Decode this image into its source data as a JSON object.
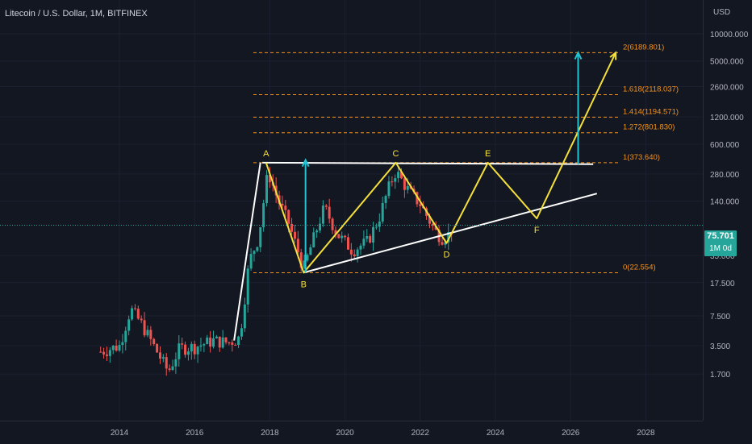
{
  "header": {
    "title": "Litecoin / U.S. Dollar, 1M, BITFINEX",
    "currency": "USD"
  },
  "last_price": {
    "value": "75.701",
    "interval": "1M 0d",
    "color": "#26a69a"
  },
  "colors": {
    "background": "#131722",
    "up": "#26a69a",
    "down": "#ef5350",
    "fib": "#f7931a",
    "wave": "#f5e03b",
    "trendline": "#ffffff",
    "arrow": "#22c4d4"
  },
  "chart_data": {
    "type": "candlestick",
    "title": "Litecoin / U.S. Dollar, 1M, BITFINEX",
    "y_scale": "log",
    "y_ticks": [
      {
        "value": 10000,
        "label": "10000.000"
      },
      {
        "value": 5000,
        "label": "5000.000"
      },
      {
        "value": 2600,
        "label": "2600.000"
      },
      {
        "value": 1200,
        "label": "1200.000"
      },
      {
        "value": 600,
        "label": "600.000"
      },
      {
        "value": 280,
        "label": "280.000"
      },
      {
        "value": 140,
        "label": "140.000"
      },
      {
        "value": 35,
        "label": "35.000"
      },
      {
        "value": 17.5,
        "label": "17.500"
      },
      {
        "value": 7.5,
        "label": "7.500"
      },
      {
        "value": 3.5,
        "label": "3.500"
      },
      {
        "value": 1.7,
        "label": "1.700"
      }
    ],
    "x_ticks": [
      {
        "year": 2014,
        "label": "2014"
      },
      {
        "year": 2016,
        "label": "2016"
      },
      {
        "year": 2018,
        "label": "2018"
      },
      {
        "year": 2020,
        "label": "2020"
      },
      {
        "year": 2022,
        "label": "2022"
      },
      {
        "year": 2024,
        "label": "2024"
      },
      {
        "year": 2026,
        "label": "2026"
      },
      {
        "year": 2028,
        "label": "2028"
      }
    ],
    "anchors": [
      {
        "year": 2013.5,
        "price": 3.0
      },
      {
        "year": 2014.0,
        "price": 3.5
      },
      {
        "year": 2014.3,
        "price": 9.0
      },
      {
        "year": 2014.6,
        "price": 6.0
      },
      {
        "year": 2015.0,
        "price": 3.0
      },
      {
        "year": 2015.3,
        "price": 1.8
      },
      {
        "year": 2015.6,
        "price": 3.3
      },
      {
        "year": 2016.0,
        "price": 3.4
      },
      {
        "year": 2016.5,
        "price": 4.0
      },
      {
        "year": 2016.9,
        "price": 3.8
      },
      {
        "year": 2017.2,
        "price": 4.3
      },
      {
        "year": 2017.45,
        "price": 30
      },
      {
        "year": 2017.7,
        "price": 55
      },
      {
        "year": 2017.95,
        "price": 300
      },
      {
        "year": 2018.2,
        "price": 150
      },
      {
        "year": 2018.5,
        "price": 80
      },
      {
        "year": 2018.9,
        "price": 25
      },
      {
        "year": 2019.2,
        "price": 60
      },
      {
        "year": 2019.45,
        "price": 120
      },
      {
        "year": 2019.8,
        "price": 60
      },
      {
        "year": 2020.2,
        "price": 40
      },
      {
        "year": 2020.6,
        "price": 50
      },
      {
        "year": 2020.9,
        "price": 90
      },
      {
        "year": 2021.2,
        "price": 220
      },
      {
        "year": 2021.35,
        "price": 300
      },
      {
        "year": 2021.7,
        "price": 180
      },
      {
        "year": 2022.0,
        "price": 130
      },
      {
        "year": 2022.4,
        "price": 65
      },
      {
        "year": 2022.6,
        "price": 55
      },
      {
        "year": 2022.75,
        "price": 60
      },
      {
        "year": 2022.9,
        "price": 75
      }
    ],
    "fib_levels": [
      {
        "ratio": "2",
        "price": 6189.801,
        "label": "2(6189.801)"
      },
      {
        "ratio": "1.618",
        "price": 2118.037,
        "label": "1.618(2118.037)"
      },
      {
        "ratio": "1.414",
        "price": 1194.571,
        "label": "1.414(1194.571)"
      },
      {
        "ratio": "1.272",
        "price": 801.83,
        "label": "1.272(801.830)"
      },
      {
        "ratio": "1",
        "price": 373.64,
        "label": "1(373.640)"
      },
      {
        "ratio": "0",
        "price": 22.554,
        "label": "0(22.554)"
      }
    ],
    "wave_points": [
      {
        "label": "A",
        "year": 2017.9,
        "price": 373.6
      },
      {
        "label": "B",
        "year": 2018.9,
        "price": 22.6
      },
      {
        "label": "C",
        "year": 2021.35,
        "price": 373.6
      },
      {
        "label": "D",
        "year": 2022.7,
        "price": 48
      },
      {
        "label": "E",
        "year": 2023.8,
        "price": 373.6
      },
      {
        "label": "F",
        "year": 2025.1,
        "price": 90
      },
      {
        "label": "",
        "year": 2027.2,
        "price": 6189.8
      }
    ],
    "trendline_top": [
      {
        "year": 2017.8,
        "price": 373.6
      },
      {
        "year": 2026.6,
        "price": 360
      }
    ],
    "trendline_bottom": [
      {
        "year": 2018.9,
        "price": 22.6
      },
      {
        "year": 2026.7,
        "price": 170
      }
    ],
    "impulse_left": [
      {
        "year": 2017.05,
        "price": 4.0
      },
      {
        "year": 2017.4,
        "price": 40
      },
      {
        "year": 2017.75,
        "price": 373.6
      }
    ],
    "arrows": [
      {
        "from_year": 2018.95,
        "from_price": 22.6,
        "to_price": 400
      },
      {
        "from_year": 2026.2,
        "from_price": 360,
        "to_price": 6189.8
      }
    ]
  }
}
